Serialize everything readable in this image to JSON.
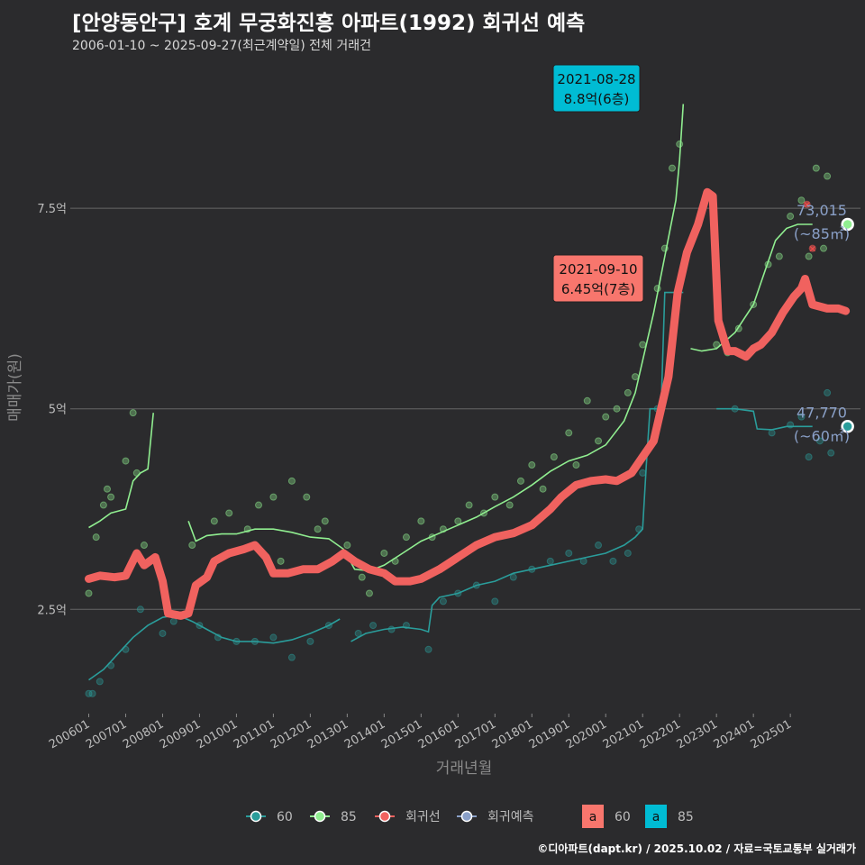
{
  "header": {
    "title": "[안양동안구] 호계 무궁화진흥 아파트(1992) 회귀선 예측",
    "subtitle": "2006-01-10 ~ 2025-09-27(최근계약일) 전체 거래건"
  },
  "footer": "©디아파트(dapt.kr) / 2025.10.02 / 자료=국토교통부 실거래가",
  "colors": {
    "background": "#2b2b2d",
    "series_60": "#2a9d9b",
    "series_85": "#90ee90",
    "regression": "#f0625f",
    "forecast": "#8aa0c8",
    "label_teal": "#00bcd4",
    "label_red": "#f8766d"
  },
  "chart_data": {
    "type": "line",
    "xlabel": "거래년월",
    "ylabel": "매매가(원)",
    "ylim": [
      1.2,
      9.4
    ],
    "y_unit": "억",
    "y_ticks": [
      {
        "value": 2.5,
        "label": "2.5억"
      },
      {
        "value": 5,
        "label": "5억"
      },
      {
        "value": 7.5,
        "label": "7.5억"
      }
    ],
    "x_ticks": [
      "200601",
      "200701",
      "200801",
      "200901",
      "201001",
      "201101",
      "201201",
      "201301",
      "201401",
      "201501",
      "201601",
      "201701",
      "201801",
      "201901",
      "202001",
      "202101",
      "202201",
      "202301",
      "202401",
      "202501"
    ],
    "legend": {
      "items": [
        "60",
        "85",
        "회귀선",
        "회귀예측"
      ],
      "label_keys": [
        {
          "text": "a",
          "name": "60"
        },
        {
          "text": "a",
          "name": "85"
        }
      ]
    },
    "series": [
      {
        "name": "85",
        "segments": [
          [
            [
              2006.0,
              3.52
            ],
            [
              2006.3,
              3.6
            ],
            [
              2006.6,
              3.7
            ],
            [
              2007.0,
              3.75
            ],
            [
              2007.2,
              4.1
            ],
            [
              2007.4,
              4.2
            ],
            [
              2007.6,
              4.25
            ],
            [
              2007.75,
              4.95
            ]
          ],
          [
            [
              2008.7,
              3.6
            ],
            [
              2008.9,
              3.35
            ],
            [
              2009.2,
              3.42
            ],
            [
              2009.6,
              3.44
            ],
            [
              2010.0,
              3.44
            ],
            [
              2010.5,
              3.5
            ],
            [
              2011.0,
              3.5
            ],
            [
              2011.5,
              3.46
            ],
            [
              2012.0,
              3.4
            ],
            [
              2012.5,
              3.38
            ],
            [
              2012.9,
              3.25
            ],
            [
              2013.2,
              3.0
            ],
            [
              2013.6,
              2.98
            ],
            [
              2014.0,
              3.05
            ],
            [
              2014.5,
              3.2
            ],
            [
              2015.0,
              3.35
            ],
            [
              2015.5,
              3.45
            ],
            [
              2016.0,
              3.55
            ],
            [
              2016.5,
              3.65
            ],
            [
              2017.0,
              3.78
            ],
            [
              2017.5,
              3.9
            ],
            [
              2018.0,
              4.05
            ],
            [
              2018.5,
              4.22
            ],
            [
              2019.0,
              4.35
            ],
            [
              2019.5,
              4.42
            ],
            [
              2020.0,
              4.55
            ],
            [
              2020.5,
              4.85
            ],
            [
              2020.8,
              5.2
            ],
            [
              2021.0,
              5.6
            ],
            [
              2021.3,
              6.2
            ],
            [
              2021.6,
              6.9
            ],
            [
              2021.9,
              7.6
            ],
            [
              2022.0,
              8.1
            ],
            [
              2022.1,
              8.8
            ]
          ],
          [
            [
              2022.3,
              5.75
            ],
            [
              2022.6,
              5.72
            ],
            [
              2023.0,
              5.75
            ],
            [
              2023.5,
              5.95
            ],
            [
              2024.0,
              6.3
            ],
            [
              2024.3,
              6.7
            ],
            [
              2024.6,
              7.1
            ],
            [
              2024.9,
              7.25
            ],
            [
              2025.2,
              7.3
            ],
            [
              2025.6,
              7.3
            ]
          ]
        ]
      },
      {
        "name": "60",
        "segments": [
          [
            [
              2006.0,
              1.62
            ],
            [
              2006.4,
              1.75
            ],
            [
              2006.8,
              1.95
            ],
            [
              2007.2,
              2.15
            ],
            [
              2007.6,
              2.3
            ],
            [
              2008.0,
              2.4
            ],
            [
              2008.4,
              2.43
            ],
            [
              2008.8,
              2.35
            ],
            [
              2009.2,
              2.25
            ],
            [
              2009.6,
              2.15
            ],
            [
              2010.0,
              2.1
            ],
            [
              2010.5,
              2.1
            ],
            [
              2011.0,
              2.08
            ],
            [
              2011.5,
              2.12
            ],
            [
              2012.0,
              2.2
            ],
            [
              2012.5,
              2.3
            ],
            [
              2012.8,
              2.38
            ]
          ],
          [
            [
              2013.1,
              2.1
            ],
            [
              2013.5,
              2.2
            ],
            [
              2014.0,
              2.25
            ],
            [
              2014.5,
              2.28
            ],
            [
              2015.0,
              2.25
            ],
            [
              2015.2,
              2.22
            ],
            [
              2015.3,
              2.55
            ],
            [
              2015.5,
              2.65
            ],
            [
              2016.0,
              2.7
            ],
            [
              2016.5,
              2.8
            ],
            [
              2017.0,
              2.85
            ],
            [
              2017.5,
              2.95
            ],
            [
              2018.0,
              3.0
            ],
            [
              2018.5,
              3.05
            ],
            [
              2019.0,
              3.1
            ],
            [
              2019.5,
              3.15
            ],
            [
              2020.0,
              3.2
            ],
            [
              2020.5,
              3.3
            ],
            [
              2020.8,
              3.4
            ],
            [
              2021.0,
              3.5
            ],
            [
              2021.1,
              4.3
            ],
            [
              2021.2,
              5.0
            ],
            [
              2021.5,
              5.0
            ],
            [
              2021.6,
              6.45
            ],
            [
              2022.1,
              6.45
            ]
          ],
          [
            [
              2023.0,
              5.0
            ],
            [
              2023.5,
              5.0
            ],
            [
              2024.0,
              4.97
            ],
            [
              2024.1,
              4.75
            ],
            [
              2024.5,
              4.74
            ],
            [
              2024.9,
              4.78
            ],
            [
              2025.3,
              4.78
            ],
            [
              2025.6,
              4.78
            ]
          ]
        ]
      },
      {
        "name": "회귀선",
        "values": [
          [
            2006.0,
            2.88
          ],
          [
            2006.3,
            2.92
          ],
          [
            2006.7,
            2.9
          ],
          [
            2007.0,
            2.92
          ],
          [
            2007.3,
            3.2
          ],
          [
            2007.5,
            3.05
          ],
          [
            2007.8,
            3.15
          ],
          [
            2008.0,
            2.85
          ],
          [
            2008.15,
            2.45
          ],
          [
            2008.5,
            2.42
          ],
          [
            2008.7,
            2.45
          ],
          [
            2008.9,
            2.8
          ],
          [
            2009.2,
            2.9
          ],
          [
            2009.4,
            3.1
          ],
          [
            2009.8,
            3.2
          ],
          [
            2010.2,
            3.25
          ],
          [
            2010.5,
            3.3
          ],
          [
            2010.8,
            3.15
          ],
          [
            2011.0,
            2.95
          ],
          [
            2011.4,
            2.95
          ],
          [
            2011.8,
            3.0
          ],
          [
            2012.2,
            3.0
          ],
          [
            2012.6,
            3.1
          ],
          [
            2012.9,
            3.2
          ],
          [
            2013.2,
            3.1
          ],
          [
            2013.6,
            3.0
          ],
          [
            2014.0,
            2.95
          ],
          [
            2014.3,
            2.85
          ],
          [
            2014.7,
            2.85
          ],
          [
            2015.0,
            2.88
          ],
          [
            2015.5,
            3.0
          ],
          [
            2016.0,
            3.15
          ],
          [
            2016.5,
            3.3
          ],
          [
            2017.0,
            3.4
          ],
          [
            2017.5,
            3.45
          ],
          [
            2018.0,
            3.55
          ],
          [
            2018.5,
            3.75
          ],
          [
            2018.8,
            3.9
          ],
          [
            2019.2,
            4.05
          ],
          [
            2019.6,
            4.1
          ],
          [
            2020.0,
            4.12
          ],
          [
            2020.3,
            4.1
          ],
          [
            2020.7,
            4.2
          ],
          [
            2021.0,
            4.4
          ],
          [
            2021.3,
            4.6
          ],
          [
            2021.7,
            5.4
          ],
          [
            2021.95,
            6.45
          ],
          [
            2022.2,
            6.95
          ],
          [
            2022.5,
            7.3
          ],
          [
            2022.75,
            7.7
          ],
          [
            2022.9,
            7.65
          ],
          [
            2023.05,
            6.1
          ],
          [
            2023.3,
            5.72
          ],
          [
            2023.5,
            5.72
          ],
          [
            2023.8,
            5.65
          ],
          [
            2024.0,
            5.75
          ],
          [
            2024.2,
            5.8
          ],
          [
            2024.5,
            5.95
          ],
          [
            2024.8,
            6.2
          ],
          [
            2025.1,
            6.4
          ],
          [
            2025.3,
            6.5
          ],
          [
            2025.4,
            6.62
          ],
          [
            2025.6,
            6.3
          ],
          [
            2026.0,
            6.25
          ],
          [
            2026.3,
            6.25
          ],
          [
            2026.5,
            6.22
          ]
        ]
      }
    ],
    "annotations": [
      {
        "date": "2021-08-28",
        "price": "8.8억(6층)",
        "x": 2021.9,
        "y": 8.8,
        "style": "teal"
      },
      {
        "date": "2021-09-10",
        "price": "6.45억(7층)",
        "x": 2021.95,
        "y": 6.45,
        "style": "red"
      }
    ],
    "forecasts": [
      {
        "value": "73,015",
        "area": "(~85㎡)",
        "x": 2026.55,
        "y": 7.3
      },
      {
        "value": "47,770",
        "area": "(~60㎡)",
        "x": 2026.55,
        "y": 4.78
      }
    ],
    "outliers": [
      [
        2025.45,
        7.55
      ],
      [
        2025.6,
        7.0
      ]
    ],
    "scatter_85": [
      [
        2006.0,
        2.7
      ],
      [
        2006.2,
        3.4
      ],
      [
        2006.4,
        3.8
      ],
      [
        2006.5,
        4.0
      ],
      [
        2006.6,
        3.9
      ],
      [
        2007.0,
        4.35
      ],
      [
        2007.2,
        4.95
      ],
      [
        2007.3,
        4.2
      ],
      [
        2007.5,
        3.3
      ],
      [
        2008.8,
        3.3
      ],
      [
        2009.4,
        3.6
      ],
      [
        2009.8,
        3.7
      ],
      [
        2010.3,
        3.5
      ],
      [
        2010.6,
        3.8
      ],
      [
        2011.0,
        3.9
      ],
      [
        2011.2,
        3.1
      ],
      [
        2011.5,
        4.1
      ],
      [
        2011.9,
        3.9
      ],
      [
        2012.2,
        3.5
      ],
      [
        2012.4,
        3.6
      ],
      [
        2013.0,
        3.3
      ],
      [
        2013.4,
        2.9
      ],
      [
        2013.6,
        2.7
      ],
      [
        2014.0,
        3.2
      ],
      [
        2014.3,
        3.1
      ],
      [
        2014.6,
        3.4
      ],
      [
        2015.0,
        3.6
      ],
      [
        2015.3,
        3.4
      ],
      [
        2015.6,
        3.5
      ],
      [
        2016.0,
        3.6
      ],
      [
        2016.3,
        3.8
      ],
      [
        2016.7,
        3.7
      ],
      [
        2017.0,
        3.9
      ],
      [
        2017.4,
        3.8
      ],
      [
        2017.7,
        4.1
      ],
      [
        2018.0,
        4.3
      ],
      [
        2018.3,
        4.0
      ],
      [
        2018.6,
        4.4
      ],
      [
        2019.0,
        4.7
      ],
      [
        2019.2,
        4.3
      ],
      [
        2019.5,
        5.1
      ],
      [
        2019.8,
        4.6
      ],
      [
        2020.0,
        4.9
      ],
      [
        2020.3,
        5.0
      ],
      [
        2020.6,
        5.2
      ],
      [
        2020.8,
        5.4
      ],
      [
        2021.0,
        5.8
      ],
      [
        2021.4,
        6.5
      ],
      [
        2021.6,
        7.0
      ],
      [
        2021.8,
        8.0
      ],
      [
        2022.0,
        8.3
      ],
      [
        2023.0,
        5.8
      ],
      [
        2023.3,
        5.7
      ],
      [
        2023.6,
        6.0
      ],
      [
        2024.0,
        6.3
      ],
      [
        2024.4,
        6.8
      ],
      [
        2024.7,
        6.9
      ],
      [
        2025.0,
        7.4
      ],
      [
        2025.3,
        7.6
      ],
      [
        2025.5,
        6.9
      ],
      [
        2025.7,
        8.0
      ],
      [
        2025.9,
        7.0
      ],
      [
        2026.0,
        7.9
      ]
    ],
    "scatter_60": [
      [
        2006.0,
        1.45
      ],
      [
        2006.1,
        1.45
      ],
      [
        2006.3,
        1.6
      ],
      [
        2006.6,
        1.8
      ],
      [
        2007.0,
        2.0
      ],
      [
        2007.4,
        2.5
      ],
      [
        2008.0,
        2.2
      ],
      [
        2008.3,
        2.35
      ],
      [
        2009.0,
        2.3
      ],
      [
        2009.5,
        2.15
      ],
      [
        2010.0,
        2.1
      ],
      [
        2010.5,
        2.1
      ],
      [
        2011.0,
        2.15
      ],
      [
        2011.5,
        1.9
      ],
      [
        2012.0,
        2.1
      ],
      [
        2012.5,
        2.3
      ],
      [
        2013.3,
        2.2
      ],
      [
        2013.7,
        2.3
      ],
      [
        2014.2,
        2.25
      ],
      [
        2014.6,
        2.3
      ],
      [
        2015.2,
        2.0
      ],
      [
        2015.6,
        2.6
      ],
      [
        2016.0,
        2.7
      ],
      [
        2016.5,
        2.8
      ],
      [
        2017.0,
        2.6
      ],
      [
        2017.5,
        2.9
      ],
      [
        2018.0,
        3.0
      ],
      [
        2018.5,
        3.1
      ],
      [
        2019.0,
        3.2
      ],
      [
        2019.4,
        3.1
      ],
      [
        2019.8,
        3.3
      ],
      [
        2020.2,
        3.1
      ],
      [
        2020.6,
        3.2
      ],
      [
        2020.9,
        3.5
      ],
      [
        2021.0,
        4.2
      ],
      [
        2021.4,
        5.0
      ],
      [
        2023.5,
        5.0
      ],
      [
        2024.5,
        4.7
      ],
      [
        2025.0,
        4.8
      ],
      [
        2025.3,
        4.9
      ],
      [
        2025.5,
        4.4
      ],
      [
        2025.8,
        4.6
      ],
      [
        2026.0,
        5.2
      ],
      [
        2026.1,
        4.45
      ]
    ]
  }
}
